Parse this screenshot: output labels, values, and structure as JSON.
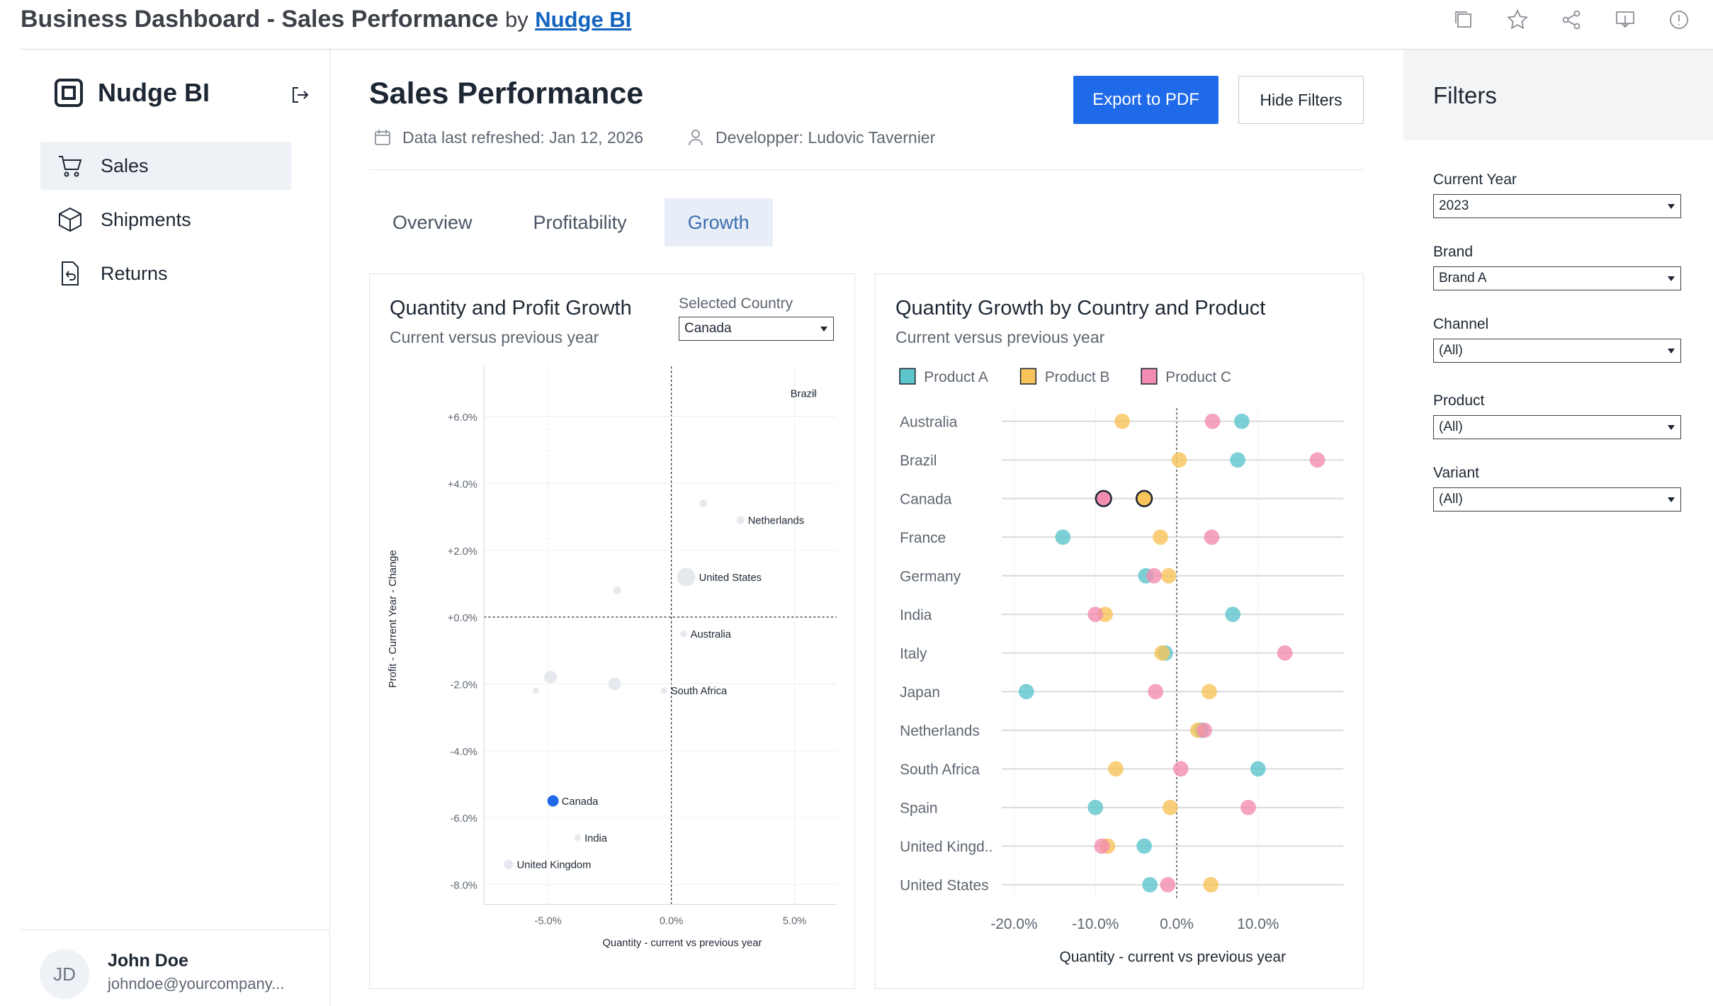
{
  "topbar": {
    "title": "Business Dashboard - Sales Performance",
    "by": "by",
    "brand_link": "Nudge BI",
    "icons": [
      "copy-icon",
      "star-icon",
      "share-icon",
      "download-icon",
      "info-icon"
    ]
  },
  "sidebar": {
    "brand": "Nudge BI",
    "items": [
      {
        "label": "Sales",
        "icon": "cart-icon",
        "active": true
      },
      {
        "label": "Shipments",
        "icon": "box-icon",
        "active": false
      },
      {
        "label": "Returns",
        "icon": "return-icon",
        "active": false
      }
    ],
    "user": {
      "initials": "JD",
      "name": "John Doe",
      "email": "johndoe@yourcompany..."
    }
  },
  "main": {
    "title": "Sales Performance",
    "refreshed": "Data last refreshed: Jan 12, 2026",
    "developer": "Developper: Ludovic Tavernier",
    "export_label": "Export to PDF",
    "hide_filters_label": "Hide Filters",
    "tabs": [
      {
        "label": "Overview",
        "active": false
      },
      {
        "label": "Profitability",
        "active": false
      },
      {
        "label": "Growth",
        "active": true
      }
    ]
  },
  "scatter_card": {
    "title": "Quantity and Profit Growth",
    "subtitle": "Current versus previous year",
    "selector_label": "Selected Country",
    "selector_value": "Canada"
  },
  "dot_card": {
    "title": "Quantity Growth by Country and Product",
    "subtitle": "Current versus previous year"
  },
  "filters": {
    "title": "Filters",
    "groups": [
      {
        "label": "Current Year",
        "value": "2023"
      },
      {
        "label": "Brand",
        "value": "Brand A"
      },
      {
        "label": "Channel",
        "value": "(All)"
      },
      {
        "label": "Product",
        "value": "(All)"
      },
      {
        "label": "Variant",
        "value": "(All)"
      }
    ]
  },
  "colors": {
    "accent": "#1f6ae8",
    "productA": "#5cc6cc",
    "productB": "#f7c35a",
    "productC": "#f28cb0",
    "bubble": "#e6e9ee"
  },
  "chart_data": [
    {
      "type": "scatter",
      "title": "Quantity and Profit Growth",
      "subtitle": "Current versus previous year",
      "xlabel": "Quantity - current vs previous year",
      "ylabel": "Profit - Current Year - Change",
      "xlim": [
        -7.6,
        6.7
      ],
      "ylim": [
        -8.6,
        7.5
      ],
      "xticks": [
        -5,
        0,
        5
      ],
      "xtick_labels": [
        "-5.0%",
        "0.0%",
        "5.0%"
      ],
      "yticks": [
        6,
        4,
        2,
        0,
        -2,
        -4,
        -6,
        -8
      ],
      "ytick_labels": [
        "+6.0%",
        "+4.0%",
        "+2.0%",
        "+0.0%",
        "-2.0%",
        "-4.0%",
        "-6.0%",
        "-8.0%"
      ],
      "highlight": "Canada",
      "points": [
        {
          "label": "Brazil",
          "x": 5.8,
          "y": 6.7,
          "size": 10
        },
        {
          "label": "",
          "x": 1.3,
          "y": 3.4,
          "size": 12
        },
        {
          "label": "Netherlands",
          "x": 2.8,
          "y": 2.9,
          "size": 12
        },
        {
          "label": "United States",
          "x": 0.6,
          "y": 1.2,
          "size": 27
        },
        {
          "label": "",
          "x": -2.2,
          "y": 0.8,
          "size": 12
        },
        {
          "label": "Australia",
          "x": 0.5,
          "y": -0.5,
          "size": 10
        },
        {
          "label": "",
          "x": -4.9,
          "y": -1.8,
          "size": 19
        },
        {
          "label": "",
          "x": -5.5,
          "y": -2.2,
          "size": 10
        },
        {
          "label": "",
          "x": -2.3,
          "y": -2.0,
          "size": 19
        },
        {
          "label": "South Africa",
          "x": -0.3,
          "y": -2.2,
          "size": 10
        },
        {
          "label": "Canada",
          "x": -4.8,
          "y": -5.5,
          "size": 15
        },
        {
          "label": "India",
          "x": -3.8,
          "y": -6.6,
          "size": 10
        },
        {
          "label": "United Kingdom",
          "x": -6.6,
          "y": -7.4,
          "size": 14
        }
      ]
    },
    {
      "type": "scatter",
      "title": "Quantity Growth by Country and Product",
      "subtitle": "Current versus previous year",
      "xlabel": "Quantity - current vs previous year",
      "xlim": [
        -21.5,
        20.5
      ],
      "xticks": [
        -20,
        -10,
        0,
        10
      ],
      "xtick_labels": [
        "-20.0%",
        "-10.0%",
        "0.0%",
        "10.0%"
      ],
      "legend": [
        "Product A",
        "Product B",
        "Product C"
      ],
      "categories": [
        "Australia",
        "Brazil",
        "Canada",
        "France",
        "Germany",
        "India",
        "Italy",
        "Japan",
        "Netherlands",
        "South Africa",
        "Spain",
        "United Kingd..",
        "United States"
      ],
      "highlight": "Canada",
      "series": [
        {
          "name": "Product A",
          "values": [
            8.0,
            7.5,
            -4.0,
            -14.0,
            -3.8,
            6.9,
            -1.4,
            -18.5,
            3.0,
            10.0,
            -10.0,
            -4.0,
            -3.3
          ]
        },
        {
          "name": "Product B",
          "values": [
            -6.7,
            0.3,
            -4.0,
            -2.0,
            -1.0,
            -8.8,
            -1.8,
            4.0,
            2.6,
            -7.5,
            -0.8,
            -8.5,
            4.2
          ]
        },
        {
          "name": "Product C",
          "values": [
            4.4,
            17.3,
            -9.0,
            4.3,
            -2.8,
            -10.0,
            13.3,
            -2.6,
            3.4,
            0.5,
            8.8,
            -9.2,
            -1.1
          ]
        }
      ]
    }
  ]
}
